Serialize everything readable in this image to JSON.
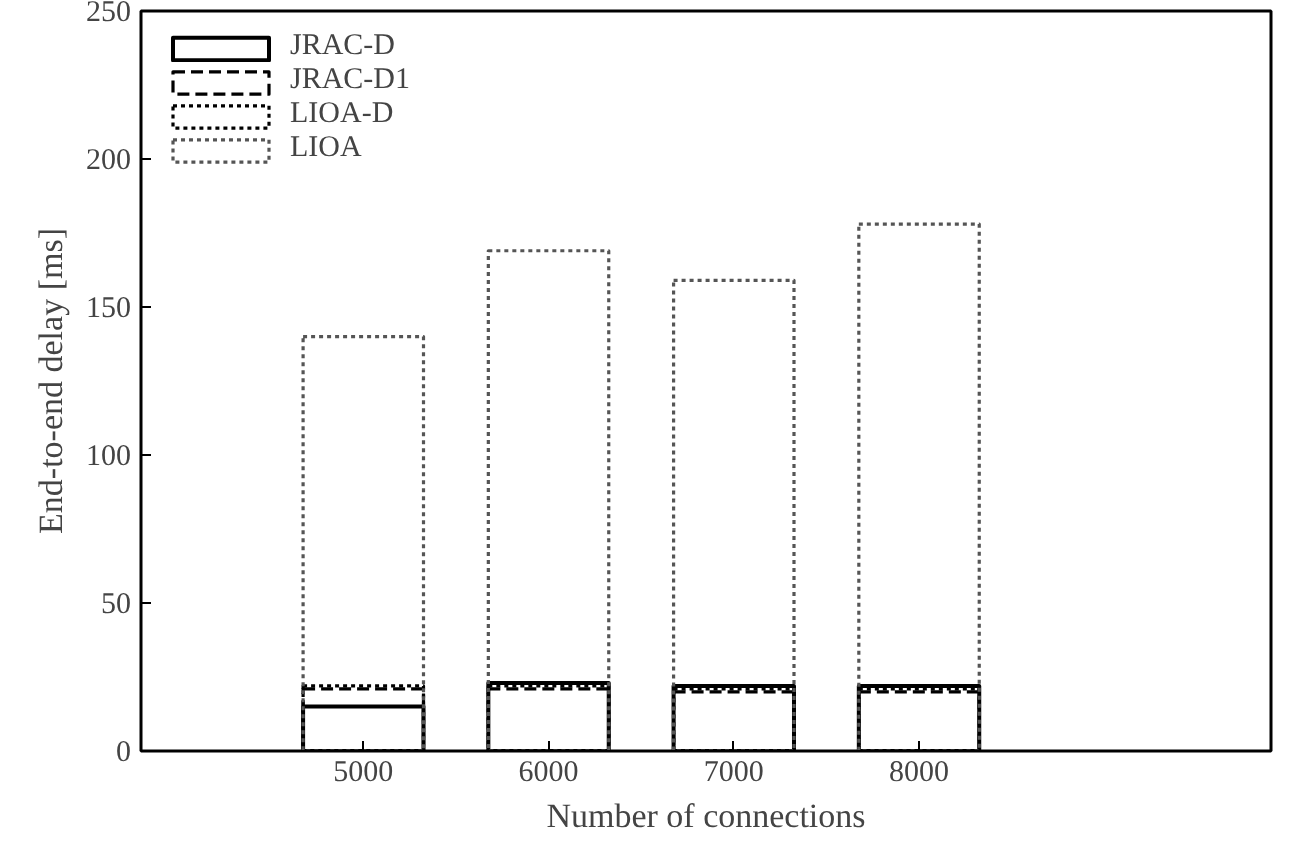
{
  "chart_data": {
    "type": "bar",
    "xlabel": "Number of connections",
    "ylabel": "End-to-end delay [ms]",
    "categories": [
      "5000",
      "6000",
      "7000",
      "8000"
    ],
    "series": [
      {
        "name": "JRAC-D",
        "color": "#000000",
        "line_style": "solid",
        "values": [
          15,
          23,
          22,
          22
        ]
      },
      {
        "name": "JRAC-D1",
        "color": "#000000",
        "line_style": "dashed",
        "values": [
          21,
          21,
          20,
          20
        ]
      },
      {
        "name": "LIOA-D",
        "color": "#000000",
        "line_style": "dotted",
        "values": [
          22,
          22,
          21,
          21
        ]
      },
      {
        "name": "LIOA",
        "color": "#555555",
        "line_style": "dotted",
        "values": [
          140,
          169,
          159,
          178
        ]
      }
    ],
    "ylim": [
      0,
      250
    ],
    "yticks": [
      0,
      50,
      100,
      150,
      200,
      250
    ],
    "grid": false,
    "legend": "top left"
  }
}
